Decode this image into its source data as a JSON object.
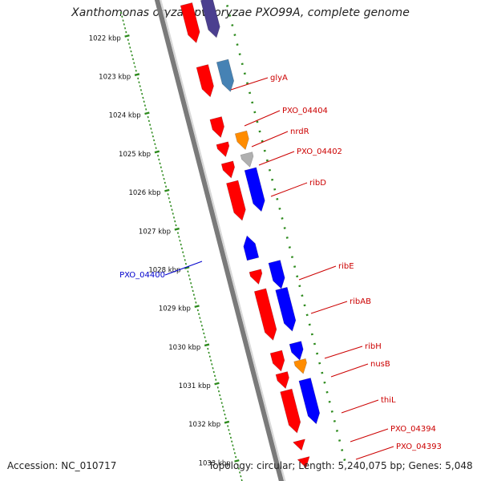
{
  "title": "Xanthomonas oryzae pv. oryzae PXO99A, complete genome",
  "footer": {
    "accession": "Accession: NC_010717",
    "summary": "Topology: circular; Length: 5,240,075 bp; Genes: 5,048"
  },
  "colors": {
    "cds_red": "#ff0000",
    "blue": "#0000ff",
    "steel_blue": "#4682b4",
    "dark_purple": "#4b3f8f",
    "orange": "#ff8c00",
    "gray": "#b0b0b0",
    "tick_green": "#2e8b1e",
    "label_red": "#cc0000",
    "label_blue": "#0000cc",
    "backbone": "#888888"
  },
  "scale_labels": [
    "1022 kbp",
    "1023 kbp",
    "1024 kbp",
    "1025 kbp",
    "1026 kbp",
    "1027 kbp",
    "1028 kbp",
    "1029 kbp",
    "1030 kbp",
    "1031 kbp",
    "1032 kbp",
    "1033 kbp"
  ],
  "gene_labels": [
    {
      "name": "glyA",
      "color": "label_red"
    },
    {
      "name": "PXO_04404",
      "color": "label_red"
    },
    {
      "name": "nrdR",
      "color": "label_red"
    },
    {
      "name": "PXO_04402",
      "color": "label_red"
    },
    {
      "name": "ribD",
      "color": "label_red"
    },
    {
      "name": "ribE",
      "color": "label_red"
    },
    {
      "name": "ribAB",
      "color": "label_red"
    },
    {
      "name": "ribH",
      "color": "label_red"
    },
    {
      "name": "nusB",
      "color": "label_red"
    },
    {
      "name": "thiL",
      "color": "label_red"
    },
    {
      "name": "PXO_04394",
      "color": "label_red"
    },
    {
      "name": "PXO_04393",
      "color": "label_red"
    },
    {
      "name": "PXO_04400",
      "color": "label_blue"
    }
  ],
  "features": [
    {
      "track": "red_fwd",
      "start": 1021.6,
      "end": 1022.6,
      "color": "cds_red"
    },
    {
      "track": "outer",
      "start": 1021.6,
      "end": 1022.6,
      "color": "dark_purple"
    },
    {
      "track": "red_fwd",
      "start": 1023.2,
      "end": 1024.0,
      "color": "cds_red"
    },
    {
      "track": "outer",
      "start": 1023.2,
      "end": 1024.0,
      "color": "steel_blue"
    },
    {
      "track": "red_fwd",
      "start": 1024.55,
      "end": 1025.05,
      "color": "cds_red"
    },
    {
      "track": "red_fwd",
      "start": 1025.2,
      "end": 1025.55,
      "color": "cds_red"
    },
    {
      "track": "outer",
      "start": 1025.05,
      "end": 1025.5,
      "color": "orange"
    },
    {
      "track": "red_fwd",
      "start": 1025.7,
      "end": 1026.1,
      "color": "cds_red"
    },
    {
      "track": "outer",
      "start": 1025.6,
      "end": 1025.95,
      "color": "gray"
    },
    {
      "track": "red_fwd",
      "start": 1026.2,
      "end": 1027.2,
      "color": "cds_red"
    },
    {
      "track": "outer",
      "start": 1026.0,
      "end": 1027.1,
      "color": "blue"
    },
    {
      "track": "rev_inner",
      "start": 1027.6,
      "end": 1028.2,
      "color": "blue"
    },
    {
      "track": "red_fwd",
      "start": 1028.5,
      "end": 1028.85,
      "color": "cds_red"
    },
    {
      "track": "outer",
      "start": 1028.4,
      "end": 1029.1,
      "color": "blue"
    },
    {
      "track": "red_fwd",
      "start": 1029.0,
      "end": 1030.3,
      "color": "cds_red"
    },
    {
      "track": "outer",
      "start": 1029.1,
      "end": 1030.2,
      "color": "blue"
    },
    {
      "track": "outer",
      "start": 1030.5,
      "end": 1030.95,
      "color": "blue"
    },
    {
      "track": "red_fwd",
      "start": 1030.6,
      "end": 1031.1,
      "color": "cds_red"
    },
    {
      "track": "outer",
      "start": 1030.95,
      "end": 1031.3,
      "color": "orange"
    },
    {
      "track": "red_fwd",
      "start": 1031.15,
      "end": 1031.55,
      "color": "cds_red"
    },
    {
      "track": "outer",
      "start": 1031.45,
      "end": 1032.6,
      "color": "blue"
    },
    {
      "track": "red_fwd",
      "start": 1031.6,
      "end": 1032.7,
      "color": "cds_red"
    },
    {
      "track": "red_fwd",
      "start": 1032.9,
      "end": 1033.15,
      "color": "cds_red"
    },
    {
      "track": "red_fwd",
      "start": 1033.35,
      "end": 1033.6,
      "color": "cds_red"
    }
  ]
}
